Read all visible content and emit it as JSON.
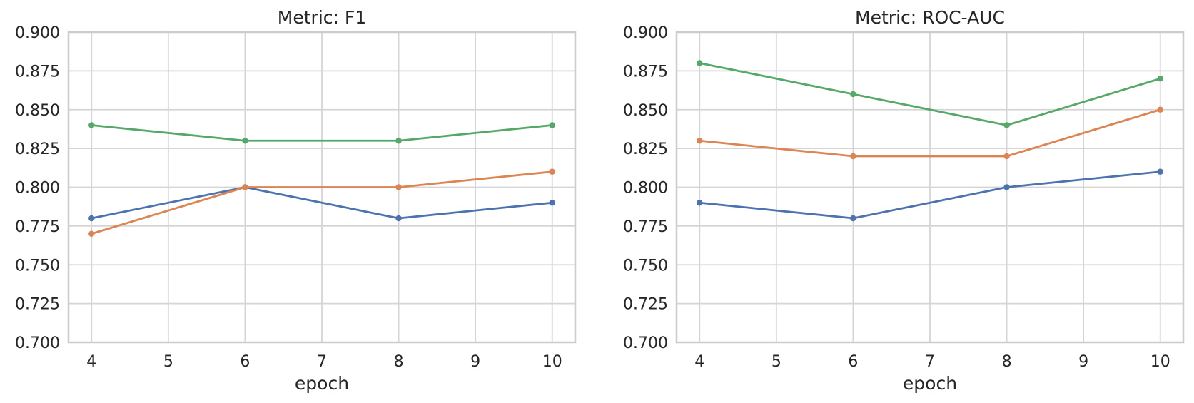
{
  "figure": {
    "background": "#ffffff",
    "text_color": "#262626",
    "grid_color": "#d5d5d5",
    "spine_color": "#cccccc"
  },
  "chart_data": [
    {
      "type": "line",
      "title": "Metric: F1",
      "xlabel": "epoch",
      "ylabel": "",
      "x": [
        4,
        6,
        8,
        10
      ],
      "series": [
        {
          "name": "series-blue",
          "color": "#4c72b0",
          "values": [
            0.78,
            0.8,
            0.78,
            0.79
          ]
        },
        {
          "name": "series-orange",
          "color": "#dd8452",
          "values": [
            0.77,
            0.8,
            0.8,
            0.81
          ]
        },
        {
          "name": "series-green",
          "color": "#55a868",
          "values": [
            0.84,
            0.83,
            0.83,
            0.84
          ]
        }
      ],
      "xlim": [
        3.7,
        10.3
      ],
      "ylim": [
        0.7,
        0.9
      ],
      "xticks": [
        4,
        5,
        6,
        7,
        8,
        9,
        10
      ],
      "xticklabels": [
        "4",
        "5",
        "6",
        "7",
        "8",
        "9",
        "10"
      ],
      "yticks": [
        0.7,
        0.725,
        0.75,
        0.775,
        0.8,
        0.825,
        0.85,
        0.875,
        0.9
      ],
      "yticklabels": [
        "0.700",
        "0.725",
        "0.750",
        "0.775",
        "0.800",
        "0.825",
        "0.850",
        "0.875",
        "0.900"
      ],
      "grid": true,
      "legend": "none",
      "marker": "circle"
    },
    {
      "type": "line",
      "title": "Metric: ROC-AUC",
      "xlabel": "epoch",
      "ylabel": "",
      "x": [
        4,
        6,
        8,
        10
      ],
      "series": [
        {
          "name": "series-blue",
          "color": "#4c72b0",
          "values": [
            0.79,
            0.78,
            0.8,
            0.81
          ]
        },
        {
          "name": "series-orange",
          "color": "#dd8452",
          "values": [
            0.83,
            0.82,
            0.82,
            0.85
          ]
        },
        {
          "name": "series-green",
          "color": "#55a868",
          "values": [
            0.88,
            0.86,
            0.84,
            0.87
          ]
        }
      ],
      "xlim": [
        3.7,
        10.3
      ],
      "ylim": [
        0.7,
        0.9
      ],
      "xticks": [
        4,
        5,
        6,
        7,
        8,
        9,
        10
      ],
      "xticklabels": [
        "4",
        "5",
        "6",
        "7",
        "8",
        "9",
        "10"
      ],
      "yticks": [
        0.7,
        0.725,
        0.75,
        0.775,
        0.8,
        0.825,
        0.85,
        0.875,
        0.9
      ],
      "yticklabels": [
        "0.700",
        "0.725",
        "0.750",
        "0.775",
        "0.800",
        "0.825",
        "0.850",
        "0.875",
        "0.900"
      ],
      "grid": true,
      "legend": "none",
      "marker": "circle"
    }
  ]
}
